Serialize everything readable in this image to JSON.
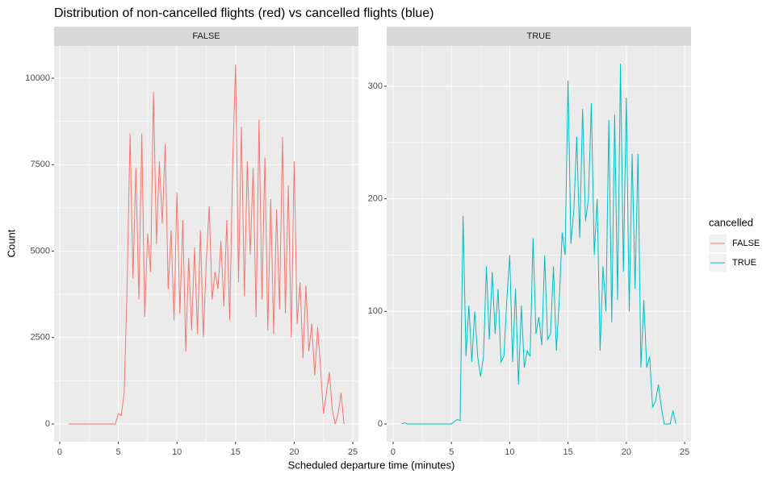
{
  "chart_data": {
    "type": "line",
    "title": "Distribution of non-cancelled flights (red) vs cancelled flights (blue)",
    "x_label": "Scheduled departure time (minutes)",
    "y_label": "Count",
    "legend_title": "cancelled",
    "grid": true,
    "panels": [
      {
        "strip": "FALSE",
        "xlim": [
          -0.48,
          25.48
        ],
        "ylim": [
          -513,
          10932
        ],
        "xticks": [
          0,
          5,
          10,
          15,
          20,
          25
        ],
        "yticks": [
          0,
          2500,
          5000,
          7500,
          10000
        ],
        "x": [
          0.75,
          1,
          1.25,
          1.5,
          1.75,
          2,
          2.25,
          2.5,
          2.75,
          3,
          3.25,
          3.5,
          3.75,
          4,
          4.25,
          4.5,
          4.75,
          5,
          5.25,
          5.5,
          5.75,
          6,
          6.25,
          6.5,
          6.75,
          7,
          7.25,
          7.5,
          7.75,
          8,
          8.25,
          8.5,
          8.75,
          9,
          9.25,
          9.5,
          9.75,
          10,
          10.25,
          10.5,
          10.75,
          11,
          11.25,
          11.5,
          11.75,
          12,
          12.25,
          12.5,
          12.75,
          13,
          13.25,
          13.5,
          13.75,
          14,
          14.25,
          14.5,
          14.75,
          15,
          15.25,
          15.5,
          15.75,
          16,
          16.25,
          16.5,
          16.75,
          17,
          17.25,
          17.5,
          17.75,
          18,
          18.25,
          18.5,
          18.75,
          19,
          19.25,
          19.5,
          19.75,
          20,
          20.25,
          20.5,
          20.75,
          21,
          21.25,
          21.5,
          21.75,
          22,
          22.25,
          22.5,
          22.75,
          23,
          23.25,
          23.5,
          23.75,
          24,
          24.25
        ],
        "series": [
          {
            "name": "FALSE",
            "color": "#F8766D",
            "values": [
              0,
              0,
              0,
              0,
              0,
              0,
              0,
              0,
              0,
              0,
              0,
              0,
              0,
              0,
              0,
              0,
              0,
              300,
              250,
              900,
              4000,
              8400,
              4200,
              7400,
              3600,
              8400,
              3100,
              5500,
              4400,
              9600,
              5200,
              7600,
              5800,
              8100,
              3900,
              5600,
              3000,
              6700,
              3200,
              5900,
              2100,
              4800,
              2700,
              5100,
              2600,
              5600,
              2500,
              4700,
              6300,
              3600,
              4400,
              3900,
              5300,
              3400,
              5900,
              3000,
              7500,
              10400,
              4100,
              8600,
              3700,
              7600,
              4900,
              7400,
              3100,
              8800,
              3600,
              7700,
              2700,
              6500,
              2600,
              6200,
              3300,
              8300,
              3200,
              6900,
              2500,
              7600,
              2900,
              4100,
              1900,
              4000,
              2100,
              2900,
              1400,
              2800,
              1600,
              300,
              900,
              1500,
              400,
              0,
              300,
              900,
              0
            ]
          }
        ]
      },
      {
        "strip": "TRUE",
        "xlim": [
          -0.55,
          25.55
        ],
        "ylim": [
          -15.8,
          335.8
        ],
        "xticks": [
          0,
          5,
          10,
          15,
          20,
          25
        ],
        "yticks": [
          0,
          100,
          200,
          300
        ],
        "x": [
          0.75,
          1,
          1.25,
          1.5,
          1.75,
          2,
          2.25,
          2.5,
          2.75,
          3,
          3.25,
          3.5,
          3.75,
          4,
          4.25,
          4.5,
          4.75,
          5,
          5.25,
          5.5,
          5.75,
          6,
          6.25,
          6.5,
          6.75,
          7,
          7.25,
          7.5,
          7.75,
          8,
          8.25,
          8.5,
          8.75,
          9,
          9.25,
          9.5,
          9.75,
          10,
          10.25,
          10.5,
          10.75,
          11,
          11.25,
          11.5,
          11.75,
          12,
          12.25,
          12.5,
          12.75,
          13,
          13.25,
          13.5,
          13.75,
          14,
          14.25,
          14.5,
          14.75,
          15,
          15.25,
          15.5,
          15.75,
          16,
          16.25,
          16.5,
          16.75,
          17,
          17.25,
          17.5,
          17.75,
          18,
          18.25,
          18.5,
          18.75,
          19,
          19.25,
          19.5,
          19.75,
          20,
          20.25,
          20.5,
          20.75,
          21,
          21.25,
          21.5,
          21.75,
          22,
          22.25,
          22.5,
          22.75,
          23,
          23.25,
          23.5,
          23.75,
          24,
          24.25
        ],
        "series": [
          {
            "name": "TRUE",
            "color": "#00BFC4",
            "values": [
              0,
              1,
              0,
              0,
              0,
              0,
              0,
              0,
              0,
              0,
              0,
              0,
              0,
              0,
              0,
              0,
              0,
              0,
              2,
              4,
              3,
              185,
              60,
              105,
              55,
              100,
              60,
              42,
              60,
              140,
              75,
              135,
              80,
              120,
              55,
              60,
              110,
              150,
              55,
              120,
              35,
              105,
              50,
              65,
              60,
              165,
              80,
              95,
              70,
              150,
              75,
              80,
              140,
              65,
              110,
              170,
              150,
              305,
              160,
              190,
              255,
              165,
              280,
              180,
              200,
              285,
              150,
              200,
              65,
              140,
              100,
              270,
              90,
              275,
              110,
              320,
              135,
              290,
              100,
              240,
              120,
              240,
              50,
              110,
              50,
              60,
              15,
              20,
              35,
              15,
              0,
              0,
              0,
              12,
              0
            ]
          }
        ]
      }
    ]
  }
}
